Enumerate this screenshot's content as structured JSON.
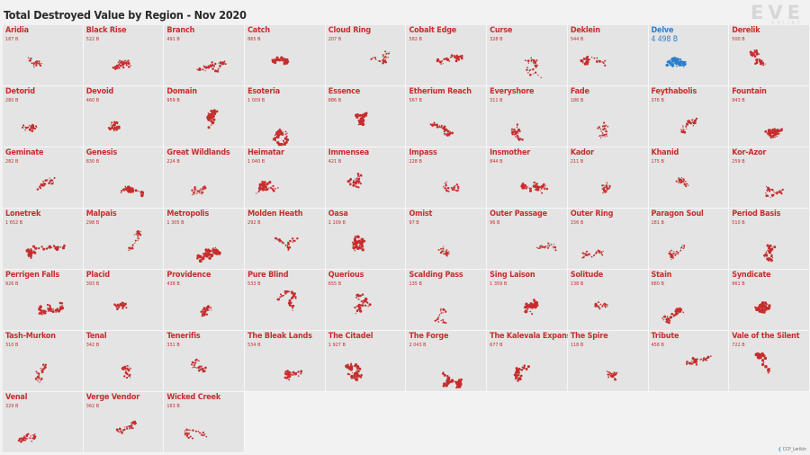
{
  "title": "Total Destroyed Value by Region - Nov 2020",
  "logo": {
    "word": "EVE",
    "sub": "ONLINE"
  },
  "credit": {
    "icon": "twitter-bird-icon",
    "glyph": "❰",
    "text": "CCP_Lerikin"
  },
  "colors": {
    "default": "#c72d2d",
    "highlight": "#2b7fcc",
    "tile": "#e4e4e4"
  },
  "chart_data": {
    "type": "small-multiples",
    "title": "Total Destroyed Value by Region - Nov 2020",
    "highlight": "Delve",
    "regions": [
      {
        "name": "Aridia",
        "value": "187 B"
      },
      {
        "name": "Black Rise",
        "value": "522 B"
      },
      {
        "name": "Branch",
        "value": "491 B"
      },
      {
        "name": "Catch",
        "value": "865 B"
      },
      {
        "name": "Cloud Ring",
        "value": "207 B"
      },
      {
        "name": "Cobalt Edge",
        "value": "582 B"
      },
      {
        "name": "Curse",
        "value": "328 B"
      },
      {
        "name": "Deklein",
        "value": "544 B"
      },
      {
        "name": "Delve",
        "value": "4 498 B"
      },
      {
        "name": "Derelik",
        "value": "500 B"
      },
      {
        "name": "Detorid",
        "value": "280 B"
      },
      {
        "name": "Devoid",
        "value": "460 B"
      },
      {
        "name": "Domain",
        "value": "959 B"
      },
      {
        "name": "Esoteria",
        "value": "1 009 B"
      },
      {
        "name": "Essence",
        "value": "886 B"
      },
      {
        "name": "Etherium Reach",
        "value": "567 B"
      },
      {
        "name": "Everyshore",
        "value": "311 B"
      },
      {
        "name": "Fade",
        "value": "186 B"
      },
      {
        "name": "Feythabolis",
        "value": "376 B"
      },
      {
        "name": "Fountain",
        "value": "943 B"
      },
      {
        "name": "Geminate",
        "value": "282 B"
      },
      {
        "name": "Genesis",
        "value": "830 B"
      },
      {
        "name": "Great Wildlands",
        "value": "224 B"
      },
      {
        "name": "Heimatar",
        "value": "1 040 B"
      },
      {
        "name": "Immensea",
        "value": "421 B"
      },
      {
        "name": "Impass",
        "value": "228 B"
      },
      {
        "name": "Insmother",
        "value": "844 B"
      },
      {
        "name": "Kador",
        "value": "211 B"
      },
      {
        "name": "Khanid",
        "value": "175 B"
      },
      {
        "name": "Kor-Azor",
        "value": "259 B"
      },
      {
        "name": "Lonetrek",
        "value": "1 652 B"
      },
      {
        "name": "Malpais",
        "value": "298 B"
      },
      {
        "name": "Metropolis",
        "value": "1 305 B"
      },
      {
        "name": "Molden Heath",
        "value": "292 B"
      },
      {
        "name": "Oasa",
        "value": "1 109 B"
      },
      {
        "name": "Omist",
        "value": "97 B"
      },
      {
        "name": "Outer Passage",
        "value": "96 B"
      },
      {
        "name": "Outer Ring",
        "value": "156 B"
      },
      {
        "name": "Paragon Soul",
        "value": "181 B"
      },
      {
        "name": "Period Basis",
        "value": "510 B"
      },
      {
        "name": "Perrigen Falls",
        "value": "926 B"
      },
      {
        "name": "Placid",
        "value": "393 B"
      },
      {
        "name": "Providence",
        "value": "438 B"
      },
      {
        "name": "Pure Blind",
        "value": "533 B"
      },
      {
        "name": "Querious",
        "value": "655 B"
      },
      {
        "name": "Scalding Pass",
        "value": "135 B"
      },
      {
        "name": "Sing Laison",
        "value": "1 359 B"
      },
      {
        "name": "Solitude",
        "value": "138 B"
      },
      {
        "name": "Stain",
        "value": "680 B"
      },
      {
        "name": "Syndicate",
        "value": "961 B"
      },
      {
        "name": "Tash-Murkon",
        "value": "310 B"
      },
      {
        "name": "Tenal",
        "value": "342 B"
      },
      {
        "name": "Tenerifis",
        "value": "331 B"
      },
      {
        "name": "The Bleak Lands",
        "value": "534 B"
      },
      {
        "name": "The Citadel",
        "value": "1 927 B"
      },
      {
        "name": "The Forge",
        "value": "2 043 B"
      },
      {
        "name": "The Kalevala Expanse",
        "value": "677 B"
      },
      {
        "name": "The Spire",
        "value": "118 B"
      },
      {
        "name": "Tribute",
        "value": "458 B"
      },
      {
        "name": "Vale of the Silent",
        "value": "722 B"
      },
      {
        "name": "Venal",
        "value": "329 B"
      },
      {
        "name": "Verge Vendor",
        "value": "362 B"
      },
      {
        "name": "Wicked Creek",
        "value": "163 B"
      }
    ]
  }
}
